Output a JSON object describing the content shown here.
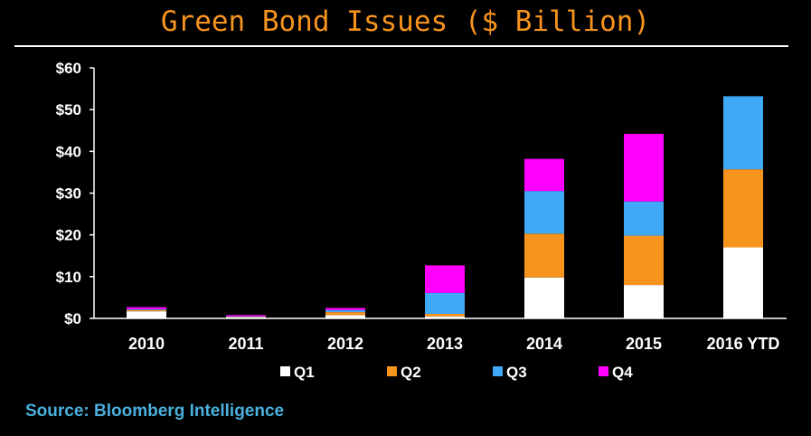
{
  "chart_data": {
    "type": "bar",
    "stacked": true,
    "title": "Green Bond Issues ($ Billion)",
    "categories": [
      "2010",
      "2011",
      "2012",
      "2013",
      "2014",
      "2015",
      "2016 YTD"
    ],
    "series": [
      {
        "name": "Q1",
        "color": "#ffffff",
        "values": [
          1.7,
          0.3,
          0.8,
          0.5,
          9.8,
          8.0,
          17.0
        ]
      },
      {
        "name": "Q2",
        "color": "#f7941d",
        "values": [
          0.3,
          0.1,
          0.7,
          0.6,
          10.5,
          11.8,
          18.7
        ]
      },
      {
        "name": "Q3",
        "color": "#3fa9f5",
        "values": [
          0.2,
          0.1,
          0.5,
          5.0,
          10.2,
          8.2,
          17.5
        ]
      },
      {
        "name": "Q4",
        "color": "#ff00ff",
        "values": [
          0.5,
          0.3,
          0.5,
          6.6,
          7.7,
          16.2,
          0
        ]
      }
    ],
    "ylim": [
      0,
      60
    ],
    "yticks": [
      0,
      10,
      20,
      30,
      40,
      50,
      60
    ],
    "ytick_labels": [
      "$0",
      "$10",
      "$20",
      "$30",
      "$40",
      "$50",
      "$60"
    ],
    "legend_position": "bottom",
    "grid": false
  },
  "source": "Source: Bloomberg Intelligence"
}
